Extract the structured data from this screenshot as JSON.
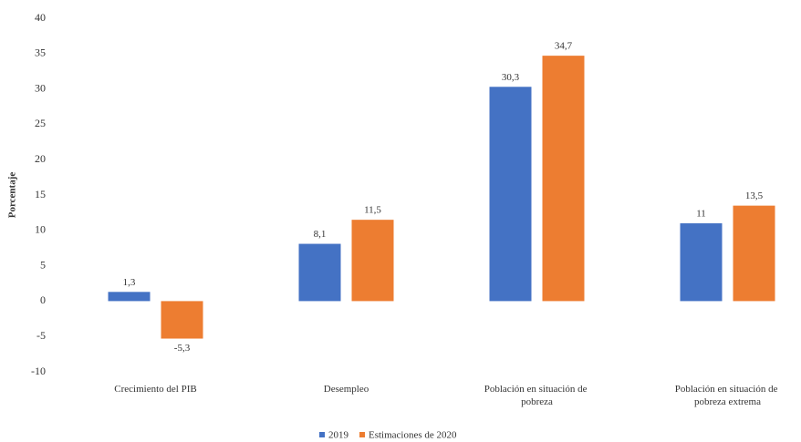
{
  "chart_data": {
    "type": "bar",
    "y_label": "Porcentaje",
    "categories": [
      "Crecimiento del PIB",
      "Desempleo",
      "Población en situación de pobreza",
      "Población en situación de pobreza extrema"
    ],
    "series": [
      {
        "name": "2019",
        "color": "#4472c4",
        "values": [
          1.3,
          8.1,
          30.3,
          11
        ],
        "value_labels": [
          "1,3",
          "8,1",
          "30,3",
          "11"
        ]
      },
      {
        "name": "Estimaciones de 2020",
        "color": "#ed7d31",
        "values": [
          -5.3,
          11.5,
          34.7,
          13.5
        ],
        "value_labels": [
          "-5,3",
          "11,5",
          "34,7",
          "13,5"
        ]
      }
    ],
    "ylim": [
      -10,
      40
    ],
    "yticks": [
      -10,
      -5,
      0,
      5,
      10,
      15,
      20,
      25,
      30,
      35,
      40
    ],
    "legend": "bottom"
  }
}
